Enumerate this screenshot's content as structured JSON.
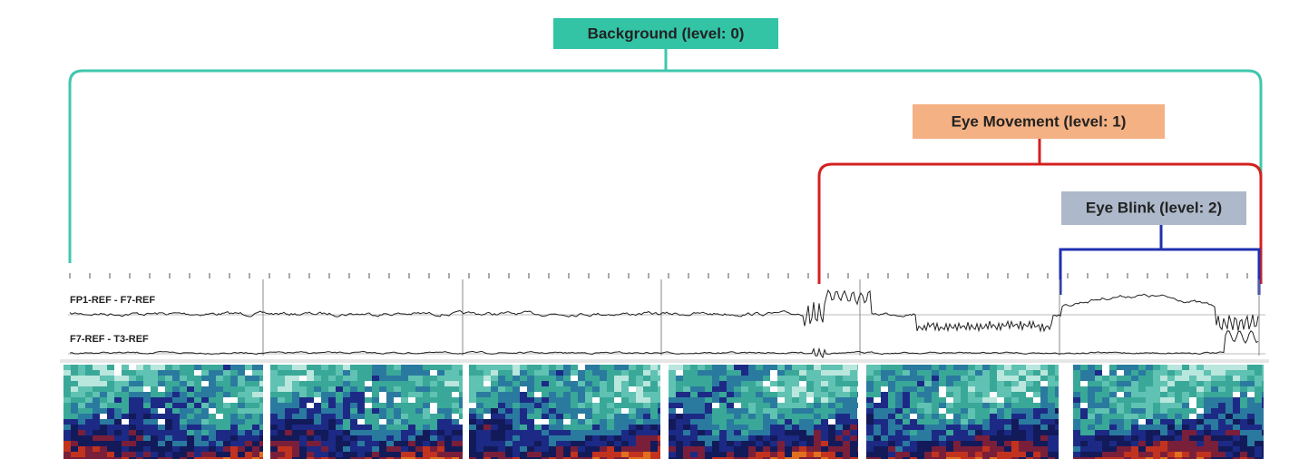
{
  "annotations": [
    {
      "label": "Background (level: 0)"
    },
    {
      "label": "Eye Movement (level: 1)"
    },
    {
      "label": "Eye Blink (level: 2)"
    }
  ],
  "channels": [
    {
      "label": "FP1-REF - F7-REF"
    },
    {
      "label": "F7-REF - T3-REF"
    }
  ]
}
